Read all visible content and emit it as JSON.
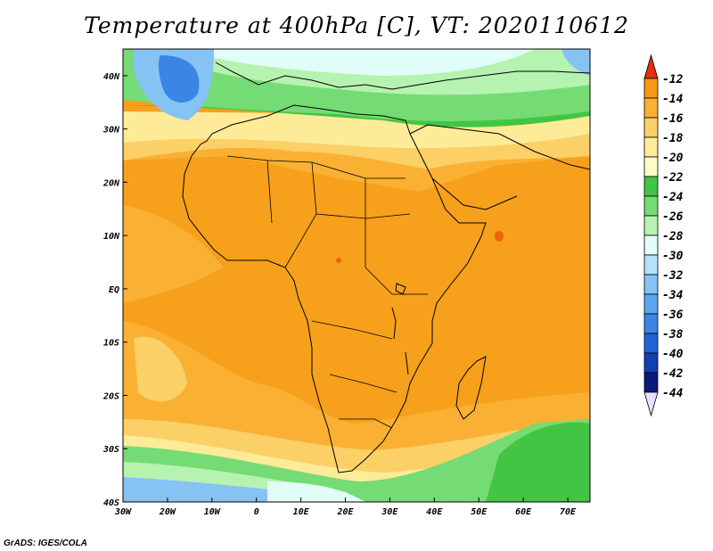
{
  "title": "Temperature at 400hPa [C], VT: 2020110612",
  "credit": "GrADS: IGES/COLA",
  "map": {
    "lon_range": [
      -30,
      75
    ],
    "lat_range": [
      -40,
      45
    ],
    "lat_ticks": [
      {
        "value": 40,
        "label": "40N"
      },
      {
        "value": 30,
        "label": "30N"
      },
      {
        "value": 20,
        "label": "20N"
      },
      {
        "value": 10,
        "label": "10N"
      },
      {
        "value": 0,
        "label": "EQ"
      },
      {
        "value": -10,
        "label": "10S"
      },
      {
        "value": -20,
        "label": "20S"
      },
      {
        "value": -30,
        "label": "30S"
      },
      {
        "value": -40,
        "label": "40S"
      }
    ],
    "lon_ticks": [
      {
        "value": -30,
        "label": "30W"
      },
      {
        "value": -20,
        "label": "20W"
      },
      {
        "value": -10,
        "label": "10W"
      },
      {
        "value": 0,
        "label": "0"
      },
      {
        "value": 10,
        "label": "10E"
      },
      {
        "value": 20,
        "label": "20E"
      },
      {
        "value": 30,
        "label": "30E"
      },
      {
        "value": 40,
        "label": "40E"
      },
      {
        "value": 50,
        "label": "50E"
      },
      {
        "value": 60,
        "label": "60E"
      },
      {
        "value": 70,
        "label": "70E"
      }
    ]
  },
  "colorbar": {
    "levels": [
      {
        "label": "-12",
        "color": "#f06010"
      },
      {
        "label": "-14",
        "color": "#f69a14"
      },
      {
        "label": "-16",
        "color": "#f9b033"
      },
      {
        "label": "-18",
        "color": "#fbd067"
      },
      {
        "label": "-20",
        "color": "#fdeb98"
      },
      {
        "label": "-22",
        "color": "#fefbc8"
      },
      {
        "label": "-24",
        "color": "#43c543"
      },
      {
        "label": "-26",
        "color": "#75db75"
      },
      {
        "label": "-28",
        "color": "#b6f2b0"
      },
      {
        "label": "-30",
        "color": "#e1fdf7"
      },
      {
        "label": "-32",
        "color": "#b4e2fb"
      },
      {
        "label": "-34",
        "color": "#85c3f5"
      },
      {
        "label": "-36",
        "color": "#5aa6ef"
      },
      {
        "label": "-38",
        "color": "#3a86e6"
      },
      {
        "label": "-40",
        "color": "#2264d7"
      },
      {
        "label": "-42",
        "color": "#113fb4"
      },
      {
        "label": "-44",
        "color": "#0a1a78"
      }
    ],
    "top_arrow_color": "#e23010",
    "bottom_arrow_color": "#e6e0fa"
  },
  "field_colors": {
    "orange": "#f7a01b",
    "light_orange": "#f9b033",
    "yellow": "#fbd067",
    "pale_yellow": "#fdeb98",
    "green": "#43c543",
    "light_green": "#75db75",
    "pale_green": "#b6f2b0",
    "cyan": "#e1fdf7",
    "light_blue": "#85c3f5",
    "blue": "#3a86e6"
  }
}
